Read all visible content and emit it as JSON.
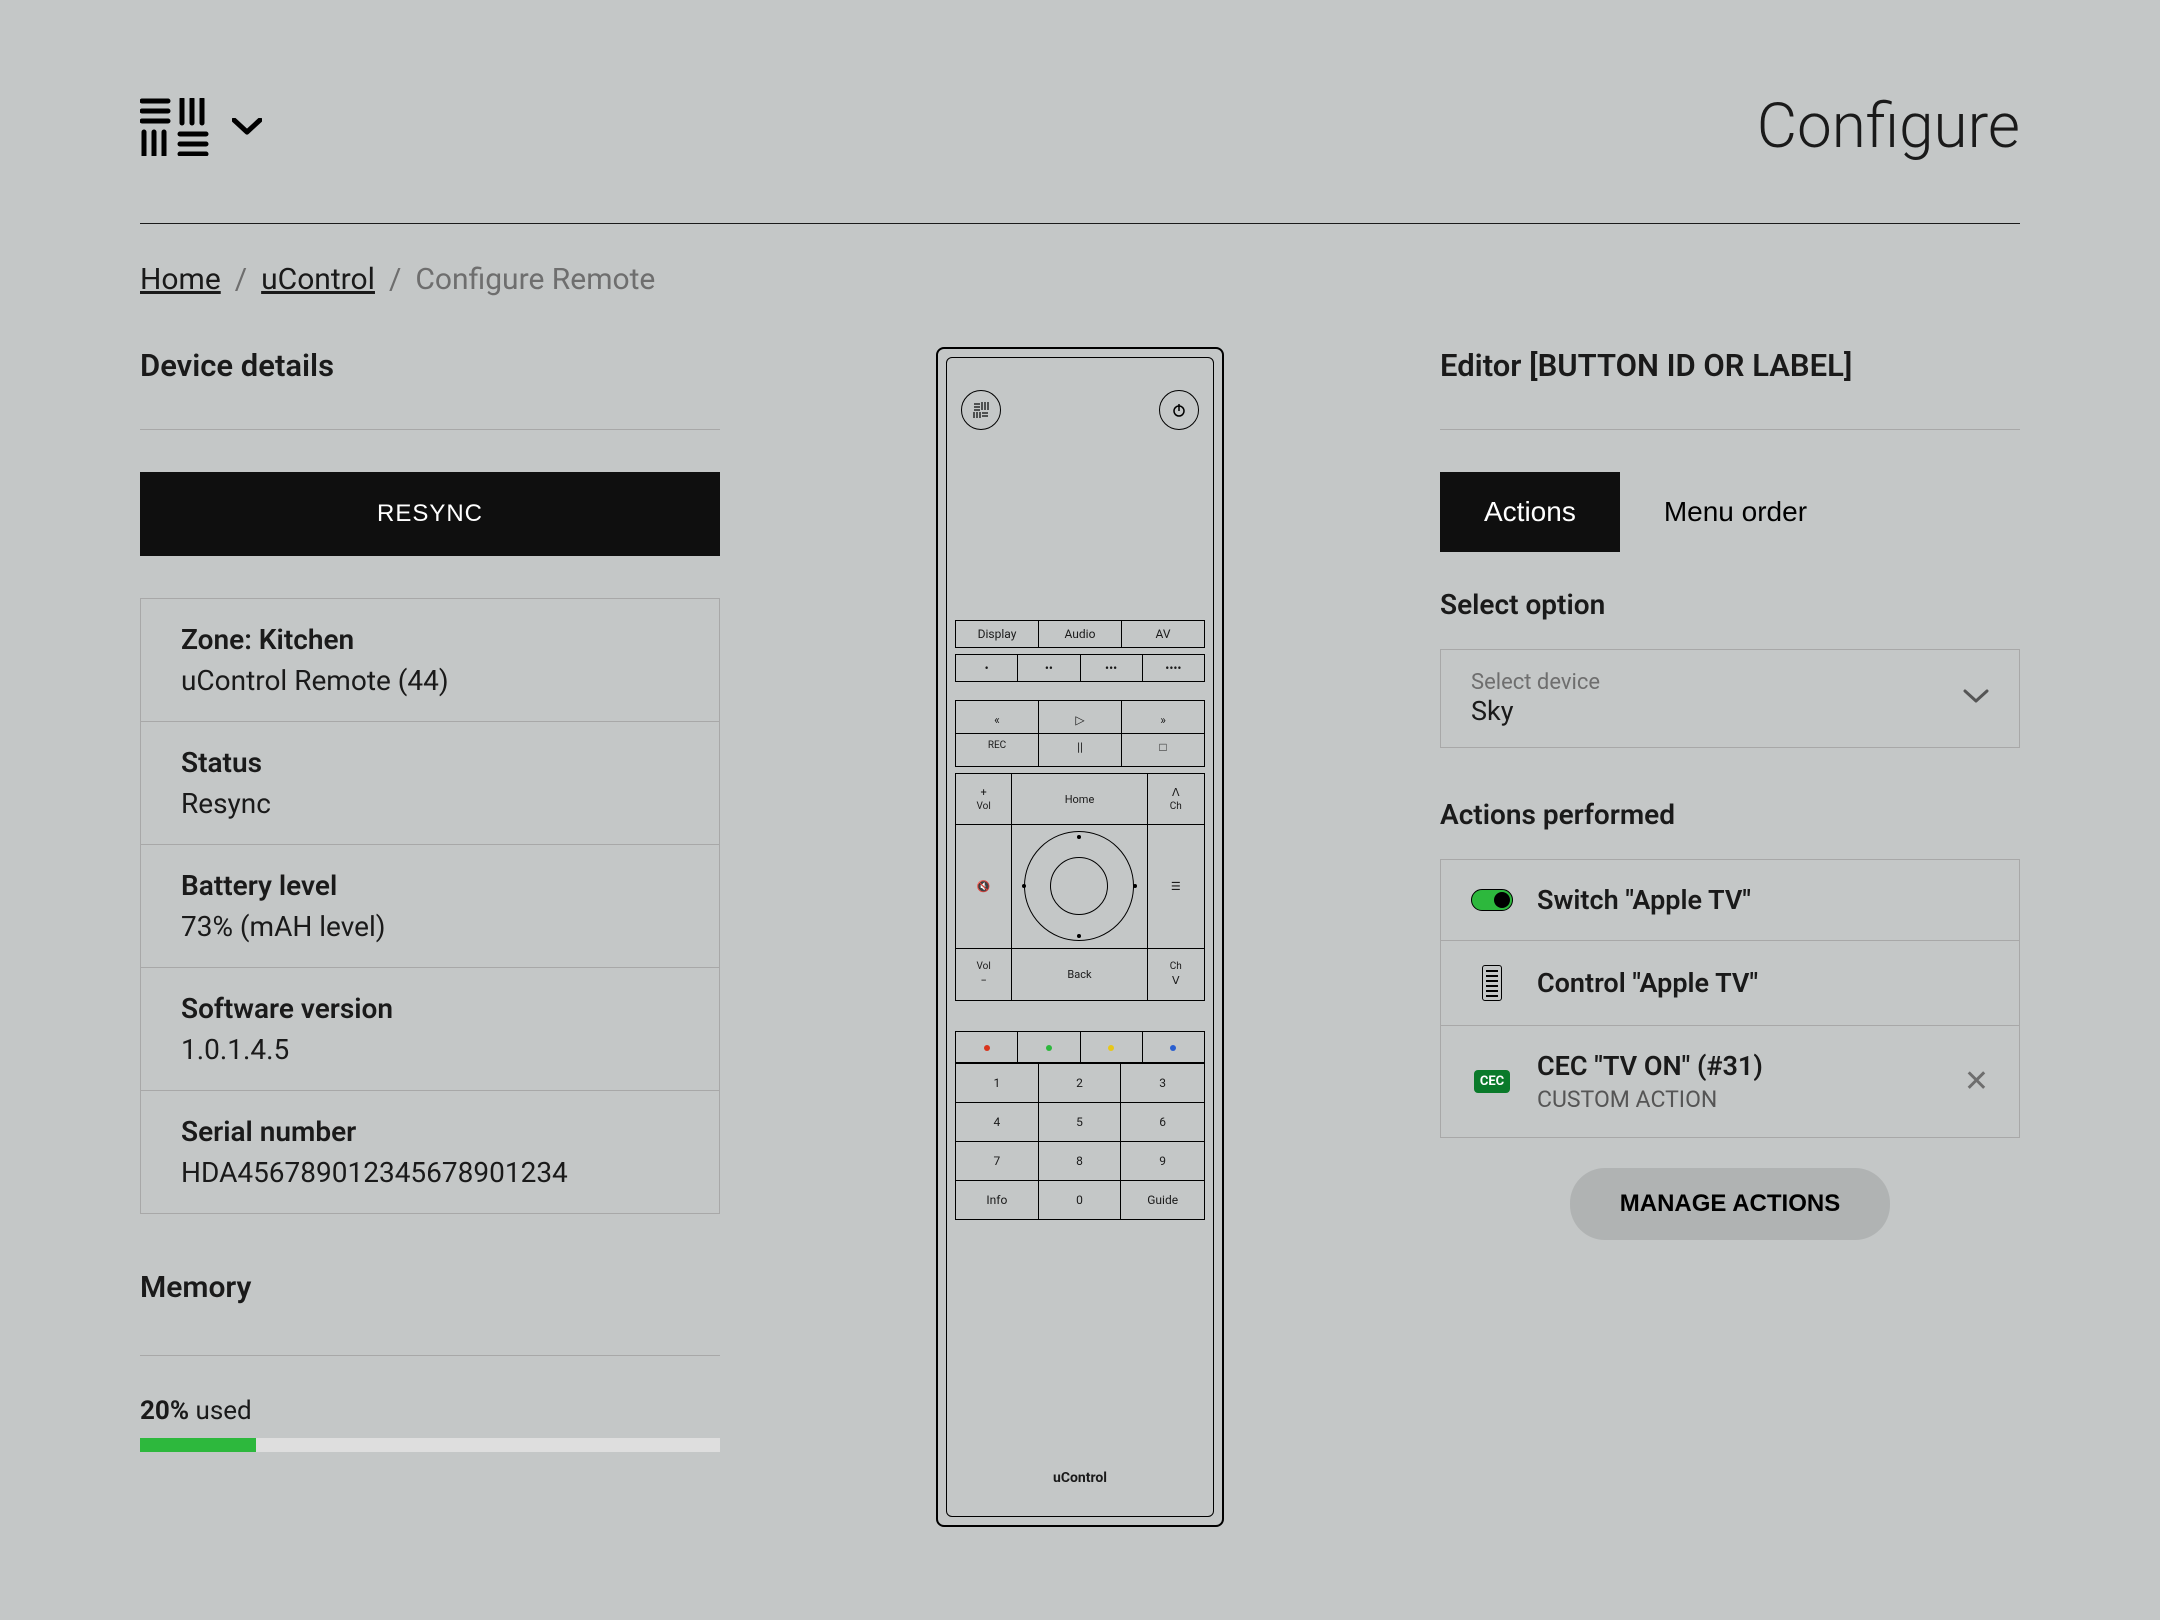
{
  "page_title": "Configure",
  "breadcrumb": {
    "home": "Home",
    "ucontrol": "uControl",
    "current": "Configure Remote"
  },
  "left": {
    "heading": "Device details",
    "resync_btn": "RESYNC",
    "zone_label": "Zone: Kitchen",
    "zone_value": "uControl Remote (44)",
    "status_label": "Status",
    "status_value": "Resync",
    "battery_label": "Battery level",
    "battery_value": "73% (mAH level)",
    "sw_label": "Software version",
    "sw_value": "1.0.1.4.5",
    "serial_label": "Serial number",
    "serial_value": "HDA456789012345678901234",
    "memory_heading": "Memory",
    "memory_pct_label": "20%",
    "memory_used_label": " used",
    "memory_fill_pct": 20
  },
  "remote": {
    "top_row": {
      "display": "Display",
      "audio": "Audio",
      "av": "AV"
    },
    "dots": {
      "d1": "•",
      "d2": "••",
      "d3": "•••",
      "d4": "••••"
    },
    "transport": {
      "rw": "«",
      "play": "▷",
      "ff": "»",
      "rec": "REC",
      "pause": "||",
      "stop": "□"
    },
    "dpad": {
      "plus": "+",
      "minus": "−",
      "home": "Home",
      "back": "Back",
      "vol": "Vol",
      "ch": "Ch",
      "up": "ᐱ",
      "down": "ᐯ",
      "mute": "🔇",
      "menu": "☰"
    },
    "num": {
      "1": "1",
      "2": "2",
      "3": "3",
      "4": "4",
      "5": "5",
      "6": "6",
      "7": "7",
      "8": "8",
      "9": "9",
      "info": "Info",
      "0": "0",
      "guide": "Guide"
    },
    "brand": "uControl",
    "color_dots": {
      "red": "#d9341c",
      "green": "#2db83d",
      "yellow": "#e7c71a",
      "blue": "#2a5fd0"
    }
  },
  "right": {
    "heading": "Editor [BUTTON ID OR LABEL]",
    "tab_actions": "Actions",
    "tab_menu": "Menu order",
    "select_option_label": "Select option",
    "select_device_label": "Select device",
    "select_device_value": "Sky",
    "actions_performed_label": "Actions performed",
    "action1": "Switch \"Apple TV\"",
    "action2": "Control \"Apple TV\"",
    "action3": "CEC \"TV ON\" (#31)",
    "action3_sub": "CUSTOM ACTION",
    "cec_badge": "CEC",
    "manage_btn": "MANAGE ACTIONS"
  },
  "colors": {
    "bg": "#c4c7c7",
    "accent_green": "#2db83d",
    "dark": "#0f0f0f"
  }
}
